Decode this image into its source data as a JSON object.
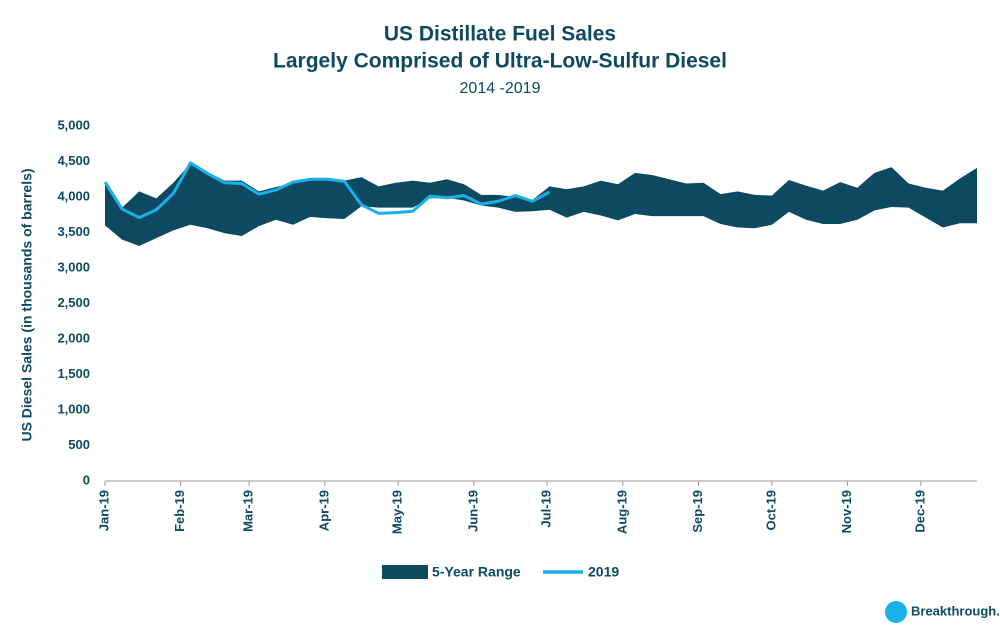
{
  "chart_data": {
    "type": "range_line",
    "title": "US Distillate Fuel Sales",
    "subtitle": "Largely Comprised of Ultra-Low-Sulfur Diesel",
    "period": "2014 -2019",
    "y_label": "US Diesel Sales (in thousands of barrels)",
    "logo_text": "Breakthrough.",
    "x": [
      0,
      7,
      14,
      21,
      28,
      35,
      42,
      49,
      56,
      63,
      70,
      77,
      84,
      91,
      98,
      105,
      112,
      119,
      126,
      133,
      140,
      147,
      154,
      161,
      168,
      175,
      182,
      189,
      196,
      203,
      210,
      217,
      224,
      231,
      238,
      245,
      252,
      259,
      266,
      273,
      280,
      287,
      294,
      301,
      308,
      315,
      322,
      329,
      336,
      343,
      350,
      357
    ],
    "xlim": [
      0,
      357
    ],
    "xticks": [
      {
        "value": 0,
        "label": "Jan-19"
      },
      {
        "value": 31,
        "label": "Feb-19"
      },
      {
        "value": 59,
        "label": "Mar-19"
      },
      {
        "value": 90,
        "label": "Apr-19"
      },
      {
        "value": 120,
        "label": "May-19"
      },
      {
        "value": 151,
        "label": "Jun-19"
      },
      {
        "value": 181,
        "label": "Jul-19"
      },
      {
        "value": 212,
        "label": "Aug-19"
      },
      {
        "value": 243,
        "label": "Sep-19"
      },
      {
        "value": 273,
        "label": "Oct-19"
      },
      {
        "value": 304,
        "label": "Nov-19"
      },
      {
        "value": 334,
        "label": "Dec-19"
      }
    ],
    "ylim": [
      0,
      5000
    ],
    "yticks": [
      0,
      500,
      {
        "value": 1000,
        "label": "1,000"
      },
      {
        "value": 1500,
        "label": "1,500"
      },
      {
        "value": 2000,
        "label": "2,000"
      },
      {
        "value": 2500,
        "label": "2,500"
      },
      {
        "value": 3000,
        "label": "3,000"
      },
      {
        "value": 3500,
        "label": "3,500"
      },
      {
        "value": 4000,
        "label": "4,000"
      },
      {
        "value": 4500,
        "label": "4,500"
      },
      {
        "value": 5000,
        "label": "5,000"
      }
    ],
    "series": [
      {
        "name": "5-Year Range",
        "color": "#0d4a62",
        "kind": "range",
        "high": [
          4200,
          3850,
          4080,
          3980,
          4200,
          4470,
          4350,
          4230,
          4230,
          4080,
          4140,
          4200,
          4230,
          4260,
          4230,
          4280,
          4150,
          4200,
          4230,
          4200,
          4250,
          4180,
          4030,
          4030,
          4000,
          3960,
          4150,
          4110,
          4150,
          4230,
          4180,
          4340,
          4310,
          4250,
          4190,
          4200,
          4040,
          4080,
          4030,
          4020,
          4240,
          4160,
          4090,
          4210,
          4130,
          4340,
          4420,
          4190,
          4130,
          4090,
          4260,
          4410
        ],
        "low": [
          3600,
          3400,
          3310,
          3420,
          3530,
          3610,
          3560,
          3490,
          3450,
          3590,
          3680,
          3610,
          3720,
          3700,
          3690,
          3870,
          3850,
          3850,
          3850,
          3980,
          3990,
          3950,
          3880,
          3850,
          3790,
          3800,
          3820,
          3710,
          3790,
          3740,
          3670,
          3760,
          3730,
          3730,
          3730,
          3730,
          3620,
          3570,
          3560,
          3610,
          3790,
          3680,
          3620,
          3620,
          3680,
          3810,
          3860,
          3850,
          3710,
          3570,
          3630,
          3630
        ]
      },
      {
        "name": "2019",
        "color": "#1ab0e8",
        "kind": "line",
        "values": [
          4210,
          3830,
          3710,
          3820,
          4050,
          4480,
          4330,
          4200,
          4190,
          4040,
          4100,
          4210,
          4250,
          4250,
          4220,
          3890,
          3770,
          3780,
          3800,
          4010,
          3990,
          4020,
          3900,
          3940,
          4020,
          3940,
          4070,
          null,
          null,
          null,
          null,
          null,
          null,
          null,
          null,
          null,
          null,
          null,
          null,
          null,
          null,
          null,
          null,
          null,
          null,
          null,
          null,
          null,
          null,
          null,
          null,
          null
        ]
      }
    ]
  }
}
